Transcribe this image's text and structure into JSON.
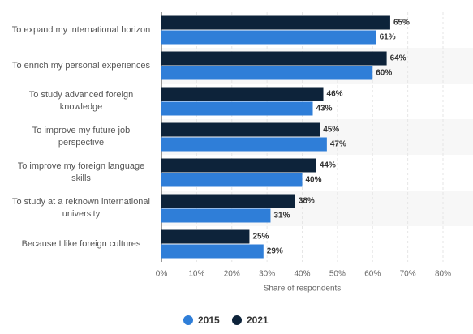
{
  "chart_data": {
    "type": "bar",
    "orientation": "horizontal",
    "x_label": "Share of respondents",
    "categories": [
      "To expand my international horizon",
      "To enrich my personal experiences",
      "To study advanced foreign knowledge",
      "To improve my future job perspective",
      "To improve my foreign language skills",
      "To study at a reknown international university",
      "Because I like foreign cultures"
    ],
    "series": [
      {
        "name": "2015",
        "color": "#2f7ed8",
        "values": [
          61,
          60,
          43,
          47,
          40,
          31,
          29
        ],
        "value_labels": [
          "61%",
          "60%",
          "43%",
          "47%",
          "40%",
          "31%",
          "29%"
        ]
      },
      {
        "name": "2021",
        "color": "#0d233a",
        "values": [
          65,
          64,
          46,
          45,
          44,
          38,
          25
        ],
        "value_labels": [
          "65%",
          "64%",
          "46%",
          "45%",
          "44%",
          "38%",
          "25%"
        ]
      }
    ],
    "xlim": [
      0,
      80
    ],
    "xticks": [
      {
        "value": 0,
        "label": "0%"
      },
      {
        "value": 10,
        "label": "10%"
      },
      {
        "value": 20,
        "label": "20%"
      },
      {
        "value": 30,
        "label": "30%"
      },
      {
        "value": 40,
        "label": "40%"
      },
      {
        "value": 50,
        "label": "50%"
      },
      {
        "value": 60,
        "label": "60%"
      },
      {
        "value": 70,
        "label": "70%"
      },
      {
        "value": 80,
        "label": "80%"
      }
    ],
    "grid": true,
    "legend": "bottom"
  }
}
